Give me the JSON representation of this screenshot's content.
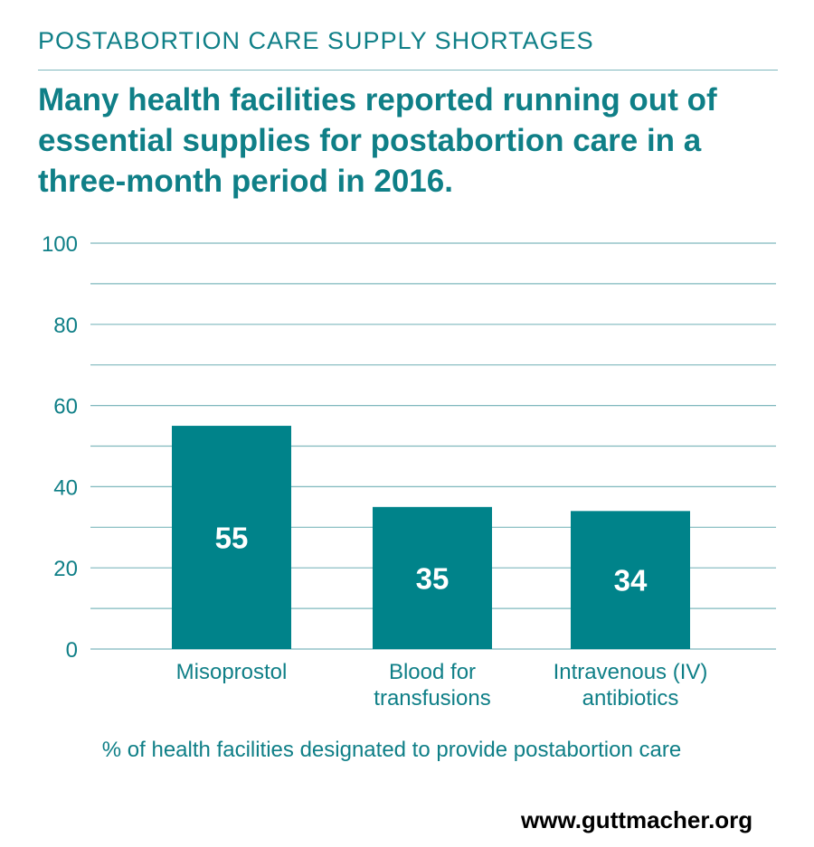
{
  "kicker": "POSTABORTION CARE SUPPLY SHORTAGES",
  "headline": "Many health facilities reported running out of essential supplies for postabortion care in a three-month period in 2016.",
  "source": "www.guttmacher.org",
  "colors": {
    "accent": "#0f7f87",
    "bar": "#00838a",
    "grid": "#7fb8bd",
    "bar_label": "#ffffff"
  },
  "chart_data": {
    "type": "bar",
    "categories": [
      [
        "Misoprostol"
      ],
      [
        "Blood for",
        "transfusions"
      ],
      [
        "Intravenous (IV)",
        "antibiotics"
      ]
    ],
    "values": [
      55,
      35,
      34
    ],
    "data_labels": [
      "55",
      "35",
      "34"
    ],
    "yticks": [
      0,
      20,
      40,
      60,
      80,
      100
    ],
    "ylim": [
      0,
      100
    ],
    "xlabel": "% of health facilities designated to provide postabortion care",
    "ylabel": "",
    "grid": true
  }
}
